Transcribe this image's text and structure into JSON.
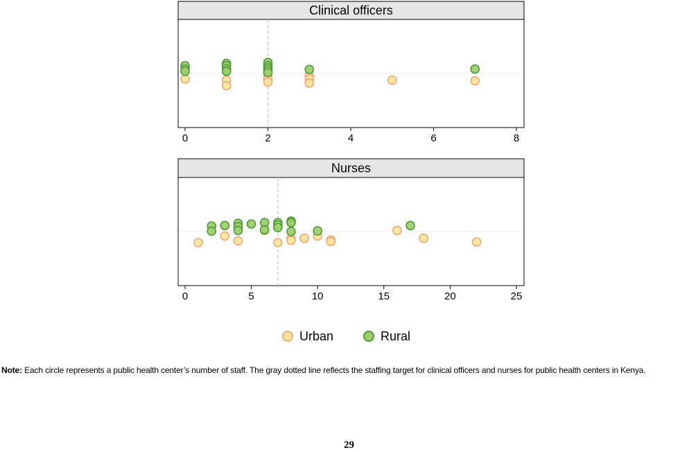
{
  "chart_data": [
    {
      "type": "scatter",
      "title": "Clinical officers",
      "xlim": [
        0,
        8
      ],
      "xticks": [
        0,
        2,
        4,
        6,
        8
      ],
      "target": 2,
      "grid": false,
      "series": [
        {
          "name": "Urban",
          "color_fill": "#fde79a",
          "color_stroke": "#f4a57a",
          "x": [
            0,
            1,
            1,
            2,
            2,
            2,
            3,
            3,
            3,
            5,
            7
          ],
          "offset": [
            -0.25,
            -0.3,
            -0.55,
            -0.1,
            -0.25,
            -0.38,
            -0.1,
            -0.25,
            -0.43,
            -0.3,
            -0.33
          ]
        },
        {
          "name": "Rural",
          "color_fill": "#9dd06a",
          "color_stroke": "#4f9a3c",
          "x": [
            0,
            0,
            0,
            1,
            1,
            1,
            1,
            2,
            2,
            2,
            2,
            2,
            3,
            7
          ],
          "offset": [
            0.35,
            0.2,
            0.1,
            0.45,
            0.35,
            0.2,
            0.1,
            0.5,
            0.35,
            0.25,
            0.15,
            0.05,
            0.18,
            0.2
          ]
        }
      ]
    },
    {
      "type": "scatter",
      "title": "Nurses",
      "xlim": [
        0,
        25
      ],
      "xticks": [
        0,
        5,
        10,
        15,
        20,
        25
      ],
      "target": 7,
      "grid": false,
      "series": [
        {
          "name": "Urban",
          "color_fill": "#fde79a",
          "color_stroke": "#f4a57a",
          "x": [
            1,
            3,
            4,
            6,
            7,
            8,
            8,
            9,
            10,
            11,
            11,
            16,
            18,
            22
          ],
          "offset": [
            -0.5,
            -0.2,
            -0.42,
            0.05,
            -0.5,
            -0.33,
            -0.4,
            -0.3,
            -0.2,
            -0.38,
            -0.45,
            0.05,
            -0.3,
            -0.47
          ]
        },
        {
          "name": "Rural",
          "color_fill": "#9dd06a",
          "color_stroke": "#4f9a3c",
          "x": [
            2,
            2,
            3,
            4,
            4,
            4,
            5,
            6,
            6,
            7,
            7,
            7,
            8,
            8,
            8,
            10,
            17
          ],
          "offset": [
            0.25,
            0.02,
            0.27,
            0.37,
            0.22,
            0.05,
            0.34,
            0.4,
            0.08,
            0.4,
            0.3,
            0.18,
            0.47,
            0.4,
            0.0,
            0.03,
            0.27
          ]
        }
      ]
    }
  ],
  "legend": {
    "placement": "bottom",
    "items": [
      {
        "label": "Urban",
        "color_fill": "#fde79a",
        "color_stroke": "#f4a57a"
      },
      {
        "label": "Rural",
        "color_fill": "#9dd06a",
        "color_stroke": "#4f9a3c"
      }
    ]
  },
  "note": {
    "label": "Note:",
    "text": " Each circle represents a public health center’s number of staff. The gray dotted line reflects the staffing target for clinical officers and nurses for public health centers in Kenya."
  },
  "page_number": "29"
}
